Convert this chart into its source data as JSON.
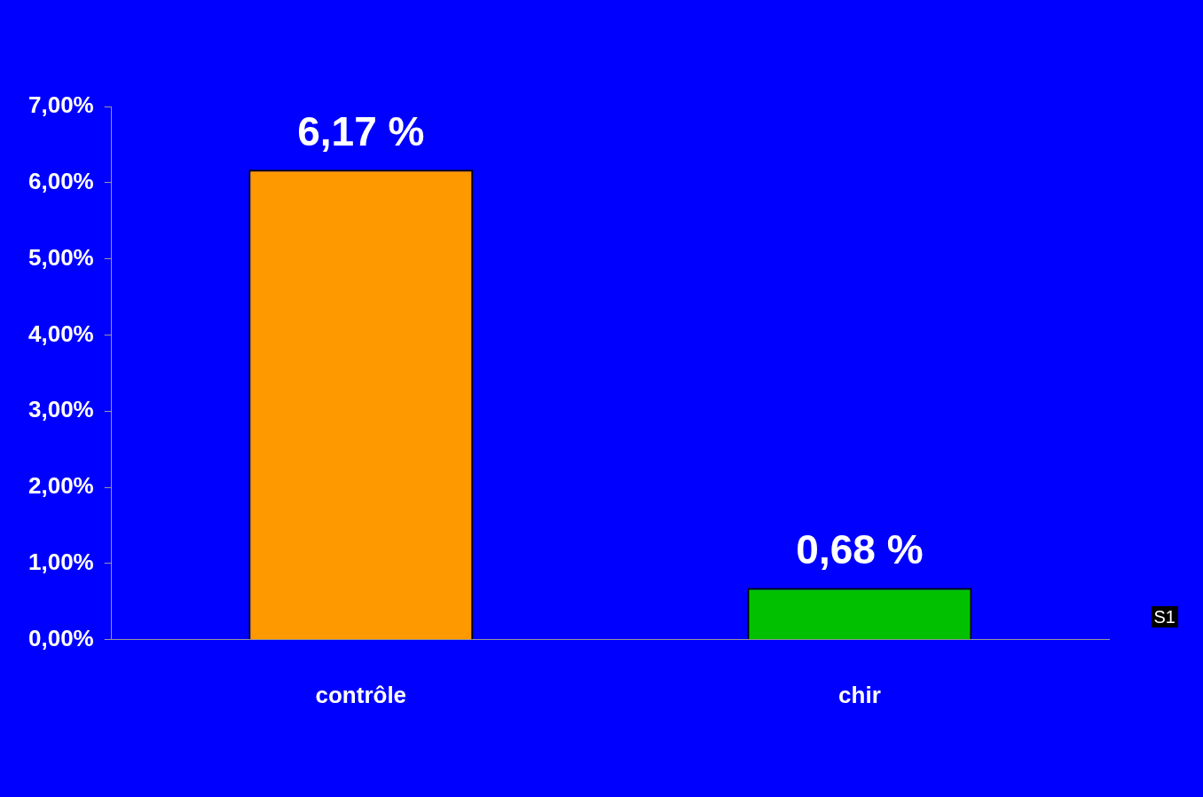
{
  "chart_data": {
    "type": "bar",
    "categories": [
      "contrôle",
      "chir"
    ],
    "values": [
      6.17,
      0.68
    ],
    "colors": [
      "#ff9900",
      "#00c000"
    ],
    "value_labels": [
      "6,17 %",
      "0,68 %"
    ],
    "ylim": [
      0,
      7
    ],
    "yticks": [
      {
        "value": 0,
        "label": "0,00%"
      },
      {
        "value": 1,
        "label": "1,00%"
      },
      {
        "value": 2,
        "label": "2,00%"
      },
      {
        "value": 3,
        "label": "3,00%"
      },
      {
        "value": 4,
        "label": "4,00%"
      },
      {
        "value": 5,
        "label": "5,00%"
      },
      {
        "value": 6,
        "label": "6,00%"
      },
      {
        "value": 7,
        "label": "7,00%"
      }
    ],
    "grid": false,
    "legend": false,
    "annotations": [
      "S1"
    ]
  }
}
